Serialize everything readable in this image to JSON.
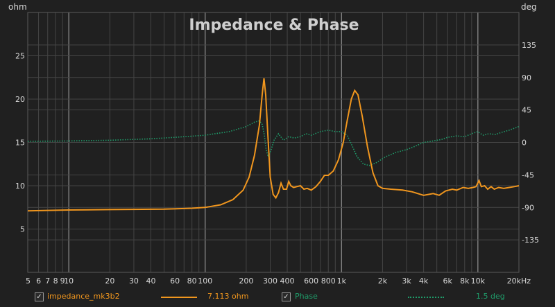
{
  "chart_data": {
    "type": "line",
    "title": "Impedance & Phase",
    "ylabel_left": "ohm",
    "ylabel_right": "deg",
    "xscale": "log",
    "xlim": [
      5,
      20000
    ],
    "ylim_left": [
      0,
      30
    ],
    "ylim_right": [
      -180,
      180
    ],
    "grid": true,
    "x_ticks": [
      {
        "v": 5,
        "label": "5"
      },
      {
        "v": 6,
        "label": "6"
      },
      {
        "v": 7,
        "label": "7"
      },
      {
        "v": 8,
        "label": "8"
      },
      {
        "v": 9,
        "label": "9"
      },
      {
        "v": 10,
        "label": "10"
      },
      {
        "v": 20,
        "label": "20"
      },
      {
        "v": 30,
        "label": "30"
      },
      {
        "v": 40,
        "label": "40"
      },
      {
        "v": 60,
        "label": "60"
      },
      {
        "v": 80,
        "label": "80"
      },
      {
        "v": 100,
        "label": "100"
      },
      {
        "v": 200,
        "label": "200"
      },
      {
        "v": 300,
        "label": "300"
      },
      {
        "v": 400,
        "label": "400"
      },
      {
        "v": 600,
        "label": "600"
      },
      {
        "v": 800,
        "label": "800"
      },
      {
        "v": 1000,
        "label": "1k"
      },
      {
        "v": 2000,
        "label": "2k"
      },
      {
        "v": 3000,
        "label": "3k"
      },
      {
        "v": 4000,
        "label": "4k"
      },
      {
        "v": 6000,
        "label": "6k"
      },
      {
        "v": 8000,
        "label": "8k"
      },
      {
        "v": 10000,
        "label": "10k"
      },
      {
        "v": 20000,
        "label": "20kHz"
      }
    ],
    "y_ticks_left": [
      {
        "v": 5,
        "label": "5"
      },
      {
        "v": 10,
        "label": "10"
      },
      {
        "v": 15,
        "label": "15"
      },
      {
        "v": 20,
        "label": "20"
      },
      {
        "v": 25,
        "label": "25"
      }
    ],
    "y_ticks_right": [
      {
        "v": 135,
        "label": "135"
      },
      {
        "v": 90,
        "label": "90"
      },
      {
        "v": 45,
        "label": "45"
      },
      {
        "v": 0,
        "label": "0"
      },
      {
        "v": -45,
        "label": "-45"
      },
      {
        "v": -90,
        "label": "-90"
      },
      {
        "v": -135,
        "label": "-135"
      }
    ],
    "series": [
      {
        "name": "impedance_mk3b2",
        "axis": "left",
        "color": "#f0961e",
        "style": "solid",
        "cursor_value": "7.113 ohm",
        "points": [
          [
            5,
            7.1
          ],
          [
            10,
            7.2
          ],
          [
            20,
            7.25
          ],
          [
            50,
            7.3
          ],
          [
            80,
            7.4
          ],
          [
            100,
            7.5
          ],
          [
            130,
            7.8
          ],
          [
            160,
            8.4
          ],
          [
            190,
            9.5
          ],
          [
            210,
            11
          ],
          [
            230,
            13.5
          ],
          [
            250,
            17
          ],
          [
            262,
            20.5
          ],
          [
            270,
            22.4
          ],
          [
            278,
            20.5
          ],
          [
            288,
            16
          ],
          [
            300,
            11
          ],
          [
            315,
            9
          ],
          [
            330,
            8.6
          ],
          [
            345,
            9.2
          ],
          [
            360,
            10.3
          ],
          [
            375,
            9.6
          ],
          [
            395,
            9.6
          ],
          [
            410,
            10.5
          ],
          [
            425,
            10
          ],
          [
            445,
            9.8
          ],
          [
            470,
            9.9
          ],
          [
            500,
            10
          ],
          [
            530,
            9.6
          ],
          [
            560,
            9.7
          ],
          [
            600,
            9.5
          ],
          [
            650,
            9.9
          ],
          [
            700,
            10.5
          ],
          [
            750,
            11.2
          ],
          [
            800,
            11.2
          ],
          [
            870,
            11.7
          ],
          [
            950,
            13
          ],
          [
            1030,
            15
          ],
          [
            1100,
            17.5
          ],
          [
            1180,
            20
          ],
          [
            1250,
            21
          ],
          [
            1320,
            20.5
          ],
          [
            1420,
            18
          ],
          [
            1550,
            14.5
          ],
          [
            1700,
            11.5
          ],
          [
            1850,
            10
          ],
          [
            2000,
            9.7
          ],
          [
            2300,
            9.6
          ],
          [
            2800,
            9.5
          ],
          [
            3300,
            9.3
          ],
          [
            4000,
            8.9
          ],
          [
            4700,
            9.1
          ],
          [
            5200,
            8.9
          ],
          [
            5800,
            9.4
          ],
          [
            6500,
            9.6
          ],
          [
            7000,
            9.5
          ],
          [
            7800,
            9.8
          ],
          [
            8500,
            9.7
          ],
          [
            9200,
            9.8
          ],
          [
            9700,
            9.9
          ],
          [
            10200,
            10.6
          ],
          [
            10600,
            9.9
          ],
          [
            11200,
            10
          ],
          [
            11800,
            9.6
          ],
          [
            12500,
            9.9
          ],
          [
            13200,
            9.6
          ],
          [
            14200,
            9.8
          ],
          [
            15500,
            9.7
          ],
          [
            17000,
            9.8
          ],
          [
            18500,
            9.9
          ],
          [
            20000,
            10
          ]
        ]
      },
      {
        "name": "Phase",
        "axis": "right",
        "color": "#1f9c6a",
        "style": "dotted",
        "cursor_value": "1.5 deg",
        "points": [
          [
            5,
            1.5
          ],
          [
            10,
            2
          ],
          [
            20,
            3
          ],
          [
            40,
            5
          ],
          [
            60,
            7
          ],
          [
            100,
            10
          ],
          [
            150,
            15
          ],
          [
            200,
            22
          ],
          [
            230,
            28
          ],
          [
            250,
            30
          ],
          [
            262,
            25
          ],
          [
            272,
            10
          ],
          [
            280,
            -10
          ],
          [
            290,
            -20
          ],
          [
            305,
            -10
          ],
          [
            320,
            3
          ],
          [
            345,
            12
          ],
          [
            375,
            3
          ],
          [
            410,
            8
          ],
          [
            450,
            6
          ],
          [
            500,
            8
          ],
          [
            550,
            12
          ],
          [
            600,
            10
          ],
          [
            700,
            15
          ],
          [
            800,
            17
          ],
          [
            900,
            15
          ],
          [
            1000,
            15
          ],
          [
            1100,
            10
          ],
          [
            1200,
            -5
          ],
          [
            1300,
            -20
          ],
          [
            1450,
            -30
          ],
          [
            1600,
            -32
          ],
          [
            1800,
            -28
          ],
          [
            2100,
            -20
          ],
          [
            2500,
            -14
          ],
          [
            3000,
            -10
          ],
          [
            3500,
            -5
          ],
          [
            4000,
            0
          ],
          [
            4700,
            2
          ],
          [
            5400,
            4
          ],
          [
            6000,
            7
          ],
          [
            7000,
            9
          ],
          [
            8000,
            8
          ],
          [
            9000,
            12
          ],
          [
            10000,
            15
          ],
          [
            10500,
            12
          ],
          [
            11000,
            10
          ],
          [
            12000,
            12
          ],
          [
            13500,
            11
          ],
          [
            15000,
            14
          ],
          [
            17000,
            17
          ],
          [
            20000,
            22
          ]
        ]
      }
    ]
  }
}
